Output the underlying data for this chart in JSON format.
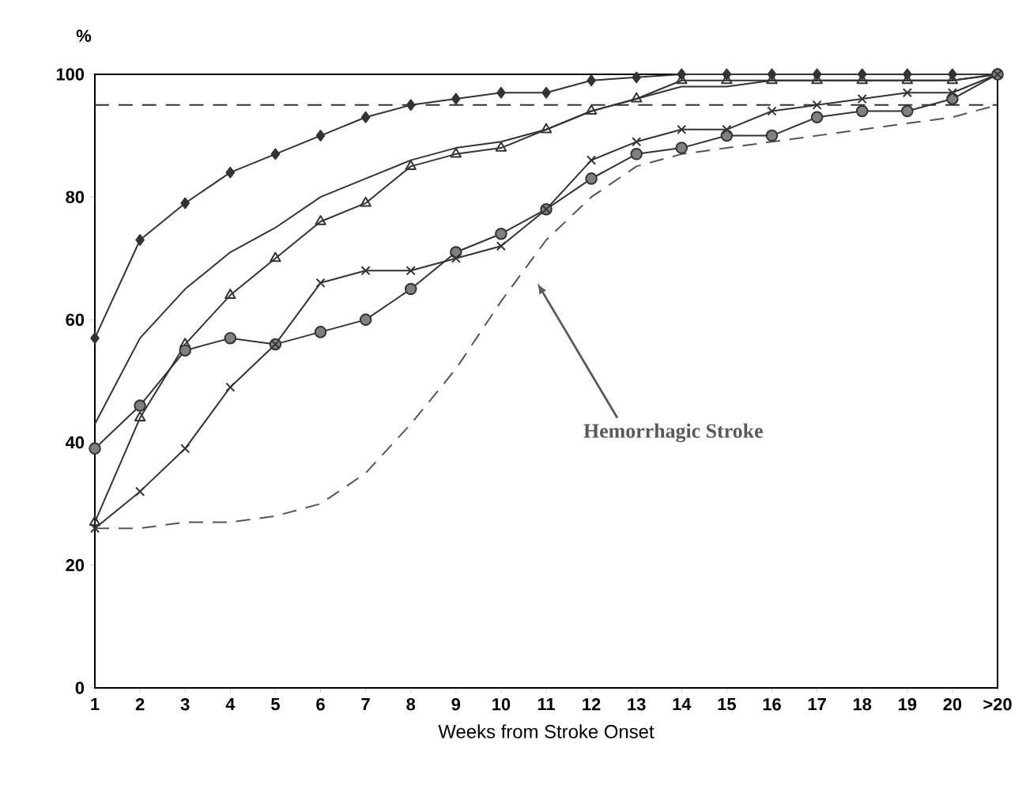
{
  "chart_data": {
    "type": "line",
    "xlabel": "Weeks from Stroke Onset",
    "ylabel": "%",
    "categories": [
      "1",
      "2",
      "3",
      "4",
      "5",
      "6",
      "7",
      "8",
      "9",
      "10",
      "11",
      "12",
      "13",
      "14",
      "15",
      "16",
      "17",
      "18",
      "19",
      "20",
      ">20"
    ],
    "ylim": [
      0,
      100
    ],
    "yticks": [
      0,
      20,
      40,
      60,
      80,
      100
    ],
    "grid": false,
    "series": [
      {
        "color": "#333333",
        "marker": "diamond",
        "values": [
          57,
          73,
          79,
          84,
          87,
          90,
          93,
          95,
          96,
          97,
          97,
          99,
          99.5,
          100,
          100,
          100,
          100,
          100,
          100,
          100,
          100
        ]
      },
      {
        "color": "#333333",
        "marker": "none",
        "values": [
          43,
          57,
          65,
          71,
          75,
          80,
          83,
          86,
          88,
          89,
          91,
          94,
          96,
          98,
          98,
          99,
          99,
          99,
          99,
          99,
          100
        ]
      },
      {
        "color": "#333333",
        "marker": "triangle",
        "values": [
          27,
          44,
          56,
          64,
          70,
          76,
          79,
          85,
          87,
          88,
          91,
          94,
          96,
          99,
          99,
          99,
          99,
          99,
          99,
          99,
          100
        ]
      },
      {
        "color": "#333333",
        "marker": "circle",
        "values": [
          39,
          46,
          55,
          57,
          56,
          58,
          60,
          65,
          71,
          74,
          78,
          83,
          87,
          88,
          90,
          90,
          93,
          94,
          94,
          96,
          100
        ]
      },
      {
        "color": "#333333",
        "marker": "cross",
        "values": [
          26,
          32,
          39,
          49,
          56,
          66,
          68,
          68,
          70,
          72,
          78,
          86,
          89,
          91,
          91,
          94,
          95,
          96,
          97,
          97,
          100
        ]
      },
      {
        "color": "#555555",
        "marker": "none",
        "line_style": "dashed",
        "values": [
          26,
          26,
          27,
          27,
          28,
          30,
          35,
          43,
          52,
          63,
          73,
          80,
          85,
          87,
          88,
          89,
          90,
          91,
          92,
          93,
          95
        ]
      }
    ],
    "ref_lines": [
      {
        "axis": "y",
        "value": 95,
        "color": "#333333",
        "line_style": "dashed"
      }
    ],
    "annotations": [
      "Hemorrhagic Stroke"
    ]
  }
}
